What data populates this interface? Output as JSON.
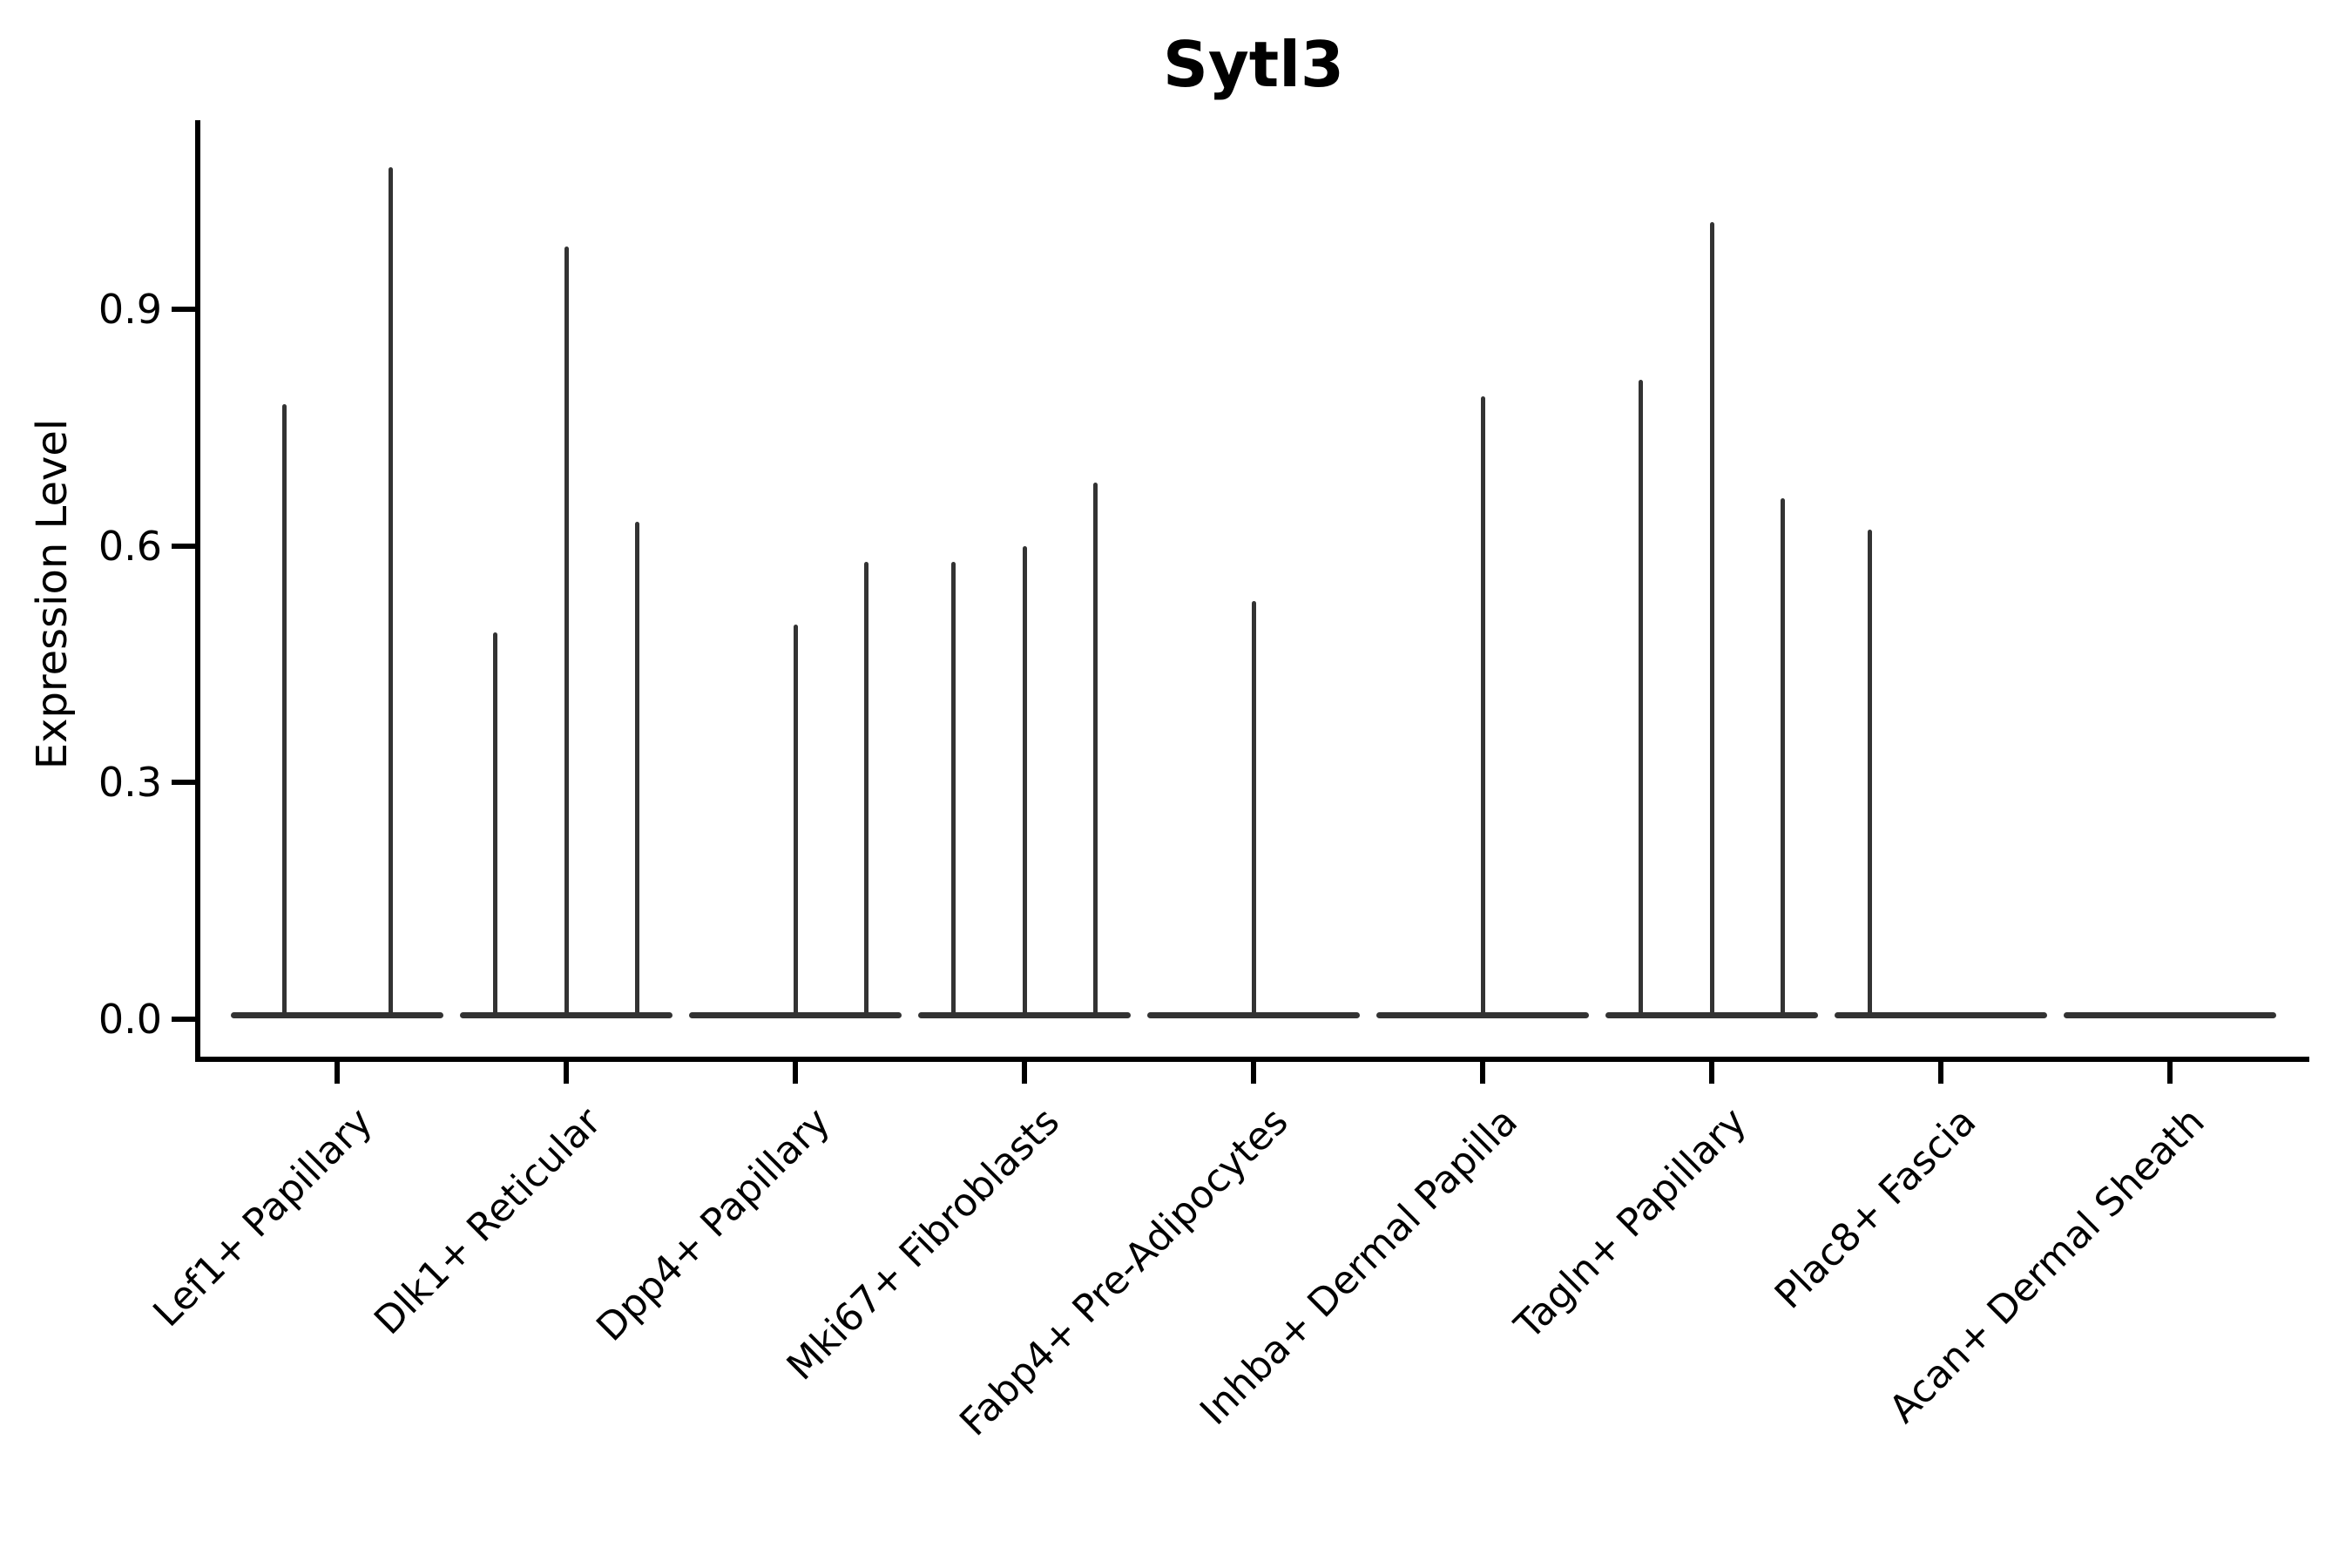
{
  "chart_data": {
    "type": "violin",
    "title": "Sytl3",
    "xlabel": "",
    "ylabel": "Expression Level",
    "ylim": [
      -0.05,
      1.14
    ],
    "yticks": [
      0.0,
      0.3,
      0.6,
      0.9
    ],
    "ytick_labels": [
      "0.0",
      "0.3",
      "0.6",
      "0.9"
    ],
    "grid": false,
    "legend_position": "none",
    "x_tick_label_rotation_deg": 45,
    "categories": [
      "Lef1+ Papillary",
      "Dlk1+ Reticular",
      "Dpp4+ Papillary",
      "Mki67+ Fibroblasts",
      "Fabp4+ Pre-Adipocytes",
      "Inhba+ Dermal Papilla",
      "Tagln+ Papillary",
      "Plac8+ Fascia",
      "Acan+ Dermal Sheath"
    ],
    "groups": [
      {
        "category": "Lef1+ Papillary",
        "violin_max_expression": [
          0.78,
          1.08
        ]
      },
      {
        "category": "Dlk1+ Reticular",
        "violin_max_expression": [
          0.49,
          0.98,
          0.63
        ]
      },
      {
        "category": "Dpp4+ Papillary",
        "violin_max_expression": [
          0,
          0.5,
          0.58
        ]
      },
      {
        "category": "Mki67+ Fibroblasts",
        "violin_max_expression": [
          0.58,
          0.6,
          0.68
        ]
      },
      {
        "category": "Fabp4+ Pre-Adipocytes",
        "violin_max_expression": [
          0,
          0.53,
          0
        ]
      },
      {
        "category": "Inhba+ Dermal Papilla",
        "violin_max_expression": [
          0,
          0.79,
          0
        ]
      },
      {
        "category": "Tagln+ Papillary",
        "violin_max_expression": [
          0.81,
          1.01,
          0.66
        ]
      },
      {
        "category": "Plac8+ Fascia",
        "violin_max_expression": [
          0.62,
          0,
          0
        ]
      },
      {
        "category": "Acan+ Dermal Sheath",
        "violin_max_expression": [
          0,
          0,
          0
        ]
      }
    ],
    "violin_shape_note": "Each violin is a flat pancake at 0.0 with a hair-thin spike up to its max expression; violins with max 0 are flat lines at 0.0"
  },
  "colors": {
    "violin": "#333333",
    "axis": "#000000",
    "text": "#000000",
    "background": "#ffffff"
  }
}
